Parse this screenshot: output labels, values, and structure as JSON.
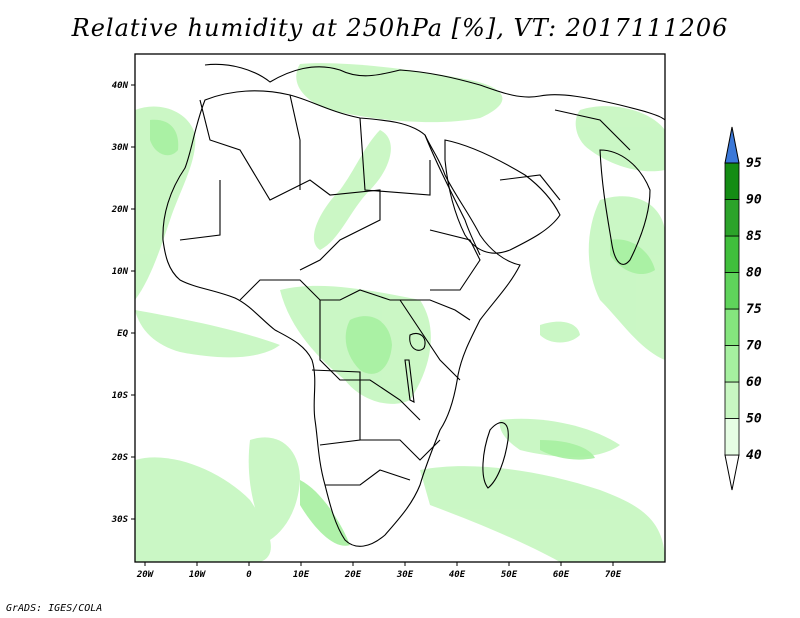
{
  "title": "Relative humidity at 250hPa [%], VT: 2017111206",
  "credit": "GrADS: IGES/COLA",
  "map": {
    "lon_labels": [
      "20W",
      "10W",
      "0",
      "10E",
      "20E",
      "30E",
      "40E",
      "50E",
      "60E",
      "70E"
    ],
    "lat_labels": [
      "40N",
      "30N",
      "20N",
      "10N",
      "EQ",
      "10S",
      "20S",
      "30S"
    ],
    "projection": "latlon",
    "extent": {
      "lon": [
        -23,
        80
      ],
      "lat": [
        -37,
        45
      ]
    },
    "border_color": "#000000",
    "fill_description_colors": "light green humidity patches"
  },
  "colorbar": {
    "levels": [
      "40",
      "50",
      "60",
      "70",
      "75",
      "80",
      "85",
      "90",
      "95"
    ],
    "colors": [
      "#ffffff",
      "#e6fde4",
      "#c8f7c2",
      "#a6f0a0",
      "#85e57e",
      "#5fd35b",
      "#40bf3c",
      "#2ca32a",
      "#148c14"
    ],
    "over_color": "#3b78d8",
    "under_color": "#ffffff"
  }
}
